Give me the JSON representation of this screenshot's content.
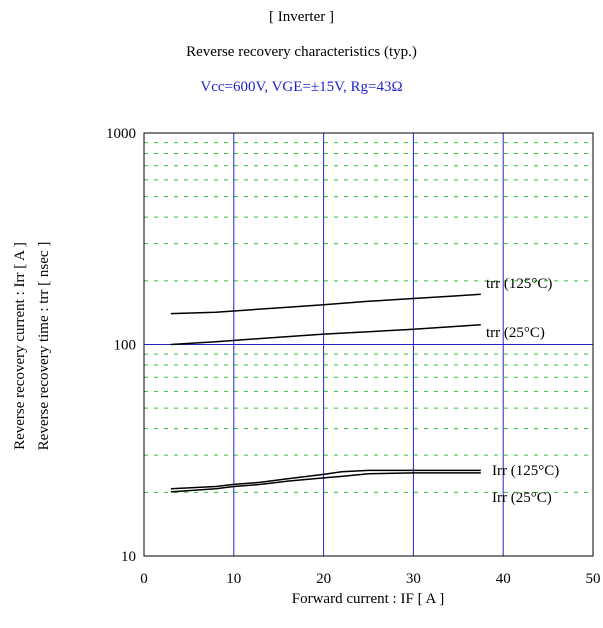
{
  "chart_data": {
    "type": "line",
    "title": "[ Inverter ]",
    "subtitle": "Reverse recovery characteristics (typ.)",
    "conditions": "Vcc=600V, VGE=±15V, Rg=43Ω",
    "xlabel": "Forward current : IF [ A ]",
    "ylabel_lines": [
      "Reverse recovery current : Irr [ A ]",
      "Reverse recovery time : trr [ nsec ]"
    ],
    "xlim": [
      0,
      50
    ],
    "ylim": [
      10,
      1000
    ],
    "yscale": "log",
    "grid": true,
    "x_ticks": [
      "0",
      "10",
      "20",
      "30",
      "40",
      "50"
    ],
    "y_ticks": [
      "10",
      "100",
      "1000"
    ],
    "colors": {
      "major_grid": "#2424c8",
      "minor_grid": "#30c030",
      "conditions": "#1f1fd0",
      "lines": "#000000"
    },
    "series": [
      {
        "name": "trr (125°C)",
        "x": [
          3,
          8,
          12,
          16,
          20,
          25,
          30,
          35,
          37.5
        ],
        "y": [
          140,
          142,
          146,
          150,
          154,
          160,
          165,
          170,
          173
        ]
      },
      {
        "name": "trr (25°C)",
        "x": [
          3,
          8,
          12,
          16,
          20,
          25,
          30,
          35,
          37.5
        ],
        "y": [
          100,
          103,
          106,
          109,
          112,
          115,
          118,
          122,
          124
        ]
      },
      {
        "name": "Irr (125°C)",
        "x": [
          3,
          8,
          10,
          13,
          16,
          20,
          22,
          25,
          30,
          37.5
        ],
        "y": [
          20.8,
          21.3,
          21.8,
          22.3,
          23.2,
          24.3,
          25.0,
          25.4,
          25.4,
          25.4
        ]
      },
      {
        "name": "Irr (25°C)",
        "x": [
          3,
          8,
          10,
          13,
          16,
          20,
          22,
          25,
          30,
          37.5
        ],
        "y": [
          20.1,
          20.8,
          21.3,
          21.8,
          22.6,
          23.4,
          23.8,
          24.5,
          24.7,
          24.7
        ]
      }
    ],
    "labels": [
      "trr (125°C)",
      "trr (25°C)",
      "Irr (125°C)",
      "Irr (25°C)"
    ]
  }
}
